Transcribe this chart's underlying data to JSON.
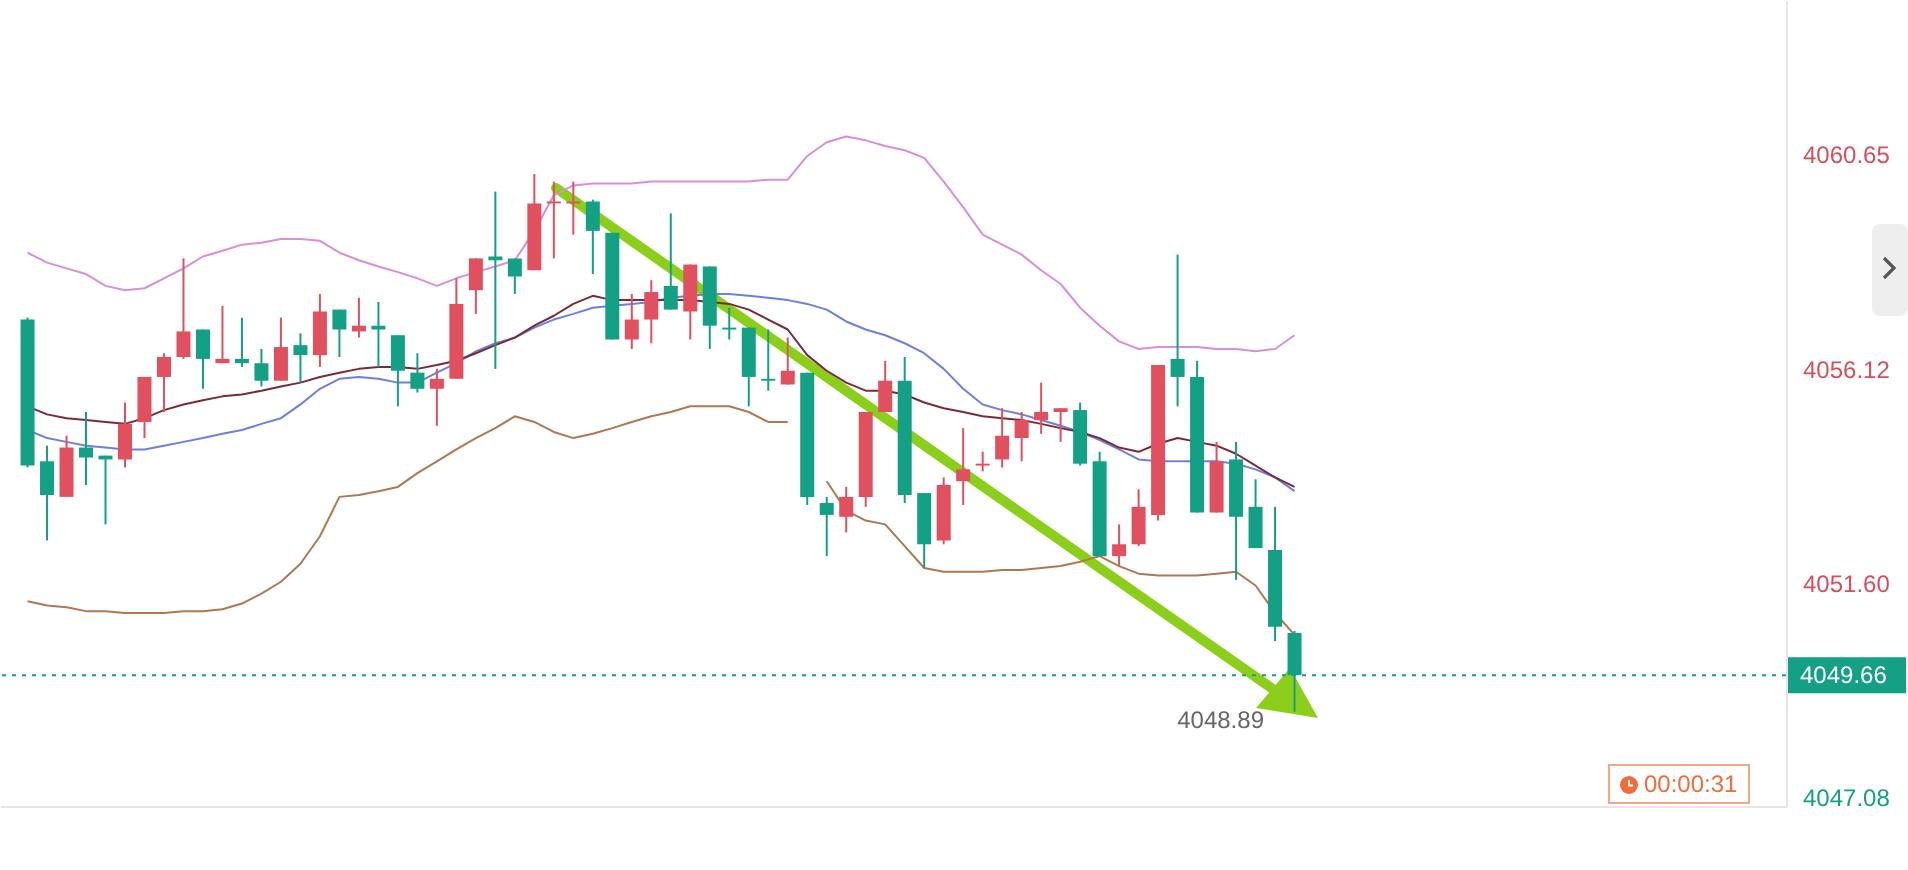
{
  "chart_data": {
    "type": "candlestick",
    "categories": [
      null,
      null,
      null,
      null,
      null,
      null,
      null,
      null,
      null,
      null,
      null,
      null,
      null,
      null,
      null,
      null,
      null,
      null,
      null,
      null,
      null,
      null,
      null,
      null,
      null,
      null,
      null,
      null,
      null,
      null,
      null,
      null,
      null,
      null,
      null,
      null,
      null,
      null,
      null,
      null,
      null,
      null,
      null,
      null,
      null,
      null,
      null,
      null,
      null,
      null,
      null,
      null,
      null,
      null,
      null,
      null,
      null,
      null,
      null,
      null,
      null,
      null,
      null,
      null,
      null,
      null
    ],
    "ohlc": [
      [
        4057.16,
        4057.2,
        4054.04,
        4054.08
      ],
      [
        4054.17,
        4054.5,
        4052.5,
        4053.46
      ],
      [
        4053.42,
        4054.71,
        4053.42,
        4054.46
      ],
      [
        4054.46,
        4055.21,
        4053.67,
        4054.25
      ],
      [
        4054.29,
        4054.29,
        4052.84,
        4054.21
      ],
      [
        4054.21,
        4055.41,
        4054.04,
        4054.96
      ],
      [
        4055.0,
        4055.95,
        4054.66,
        4055.95
      ],
      [
        4055.95,
        4056.45,
        4055.21,
        4056.37
      ],
      [
        4056.37,
        4058.45,
        4056.33,
        4056.91
      ],
      [
        4056.95,
        4056.95,
        4055.7,
        4056.33
      ],
      [
        4056.24,
        4057.45,
        4056.24,
        4056.33
      ],
      [
        4056.33,
        4057.2,
        4056.16,
        4056.24
      ],
      [
        4056.24,
        4056.54,
        4055.75,
        4055.87
      ],
      [
        4055.87,
        4057.2,
        4055.87,
        4056.58
      ],
      [
        4056.62,
        4056.87,
        4055.83,
        4056.41
      ],
      [
        4056.41,
        4057.7,
        4056.16,
        4057.33
      ],
      [
        4057.37,
        4057.37,
        4056.37,
        4056.95
      ],
      [
        4056.91,
        4057.62,
        4056.78,
        4057.03
      ],
      [
        4057.03,
        4057.53,
        4056.16,
        4056.95
      ],
      [
        4056.83,
        4056.83,
        4055.33,
        4056.08
      ],
      [
        4056.04,
        4056.45,
        4055.62,
        4055.7
      ],
      [
        4055.7,
        4056.12,
        4054.92,
        4055.91
      ],
      [
        4055.91,
        4058.03,
        4055.91,
        4057.49
      ],
      [
        4057.78,
        4058.45,
        4057.28,
        4058.45
      ],
      [
        4058.49,
        4059.86,
        4056.12,
        4058.41
      ],
      [
        4058.45,
        4058.45,
        4057.7,
        4058.07
      ],
      [
        4058.2,
        4060.23,
        4058.2,
        4059.61
      ],
      [
        4059.61,
        4060.07,
        4058.45,
        4059.65
      ],
      [
        4059.61,
        4060.07,
        4058.95,
        4059.65
      ],
      [
        4059.65,
        4059.69,
        4058.12,
        4059.03
      ],
      [
        4058.99,
        4058.99,
        4056.74,
        4056.74
      ],
      [
        4056.74,
        4057.7,
        4056.54,
        4057.16
      ],
      [
        4057.16,
        4057.99,
        4056.66,
        4057.74
      ],
      [
        4057.87,
        4059.4,
        4057.37,
        4057.37
      ],
      [
        4057.33,
        4058.32,
        4056.74,
        4058.32
      ],
      [
        4058.28,
        4058.28,
        4056.54,
        4057.03
      ],
      [
        4056.99,
        4057.41,
        4056.74,
        4056.95
      ],
      [
        4056.99,
        4056.99,
        4055.33,
        4055.95
      ],
      [
        4055.91,
        4056.95,
        4055.66,
        4055.87
      ],
      [
        4055.79,
        4056.78,
        4055.79,
        4056.08
      ],
      [
        4056.04,
        4056.04,
        4053.25,
        4053.42
      ],
      [
        4053.29,
        4053.42,
        4052.17,
        4053.04
      ],
      [
        4053.0,
        4053.63,
        4052.67,
        4053.42
      ],
      [
        4053.42,
        4055.21,
        4053.21,
        4055.21
      ],
      [
        4055.21,
        4056.29,
        4055.21,
        4055.87
      ],
      [
        4055.87,
        4056.37,
        4053.29,
        4053.46
      ],
      [
        4053.5,
        4053.5,
        4051.92,
        4052.42
      ],
      [
        4052.5,
        4053.83,
        4052.42,
        4053.67
      ],
      [
        4053.75,
        4054.87,
        4053.25,
        4054.0
      ],
      [
        4054.08,
        4054.37,
        4053.96,
        4054.12
      ],
      [
        4054.21,
        4055.29,
        4054.04,
        4054.71
      ],
      [
        4054.66,
        4055.21,
        4054.17,
        4055.04
      ],
      [
        4055.04,
        4055.83,
        4054.75,
        4055.21
      ],
      [
        4055.21,
        4055.29,
        4054.58,
        4055.29
      ],
      [
        4055.25,
        4055.41,
        4054.08,
        4054.12
      ],
      [
        4054.17,
        4054.37,
        4052.17,
        4052.17
      ],
      [
        4052.17,
        4052.84,
        4051.96,
        4052.42
      ],
      [
        4052.42,
        4053.58,
        4052.38,
        4053.21
      ],
      [
        4053.04,
        4056.2,
        4052.92,
        4056.2
      ],
      [
        4056.33,
        4058.53,
        4055.33,
        4055.95
      ],
      [
        4055.95,
        4056.29,
        4053.09,
        4053.09
      ],
      [
        4053.09,
        4054.58,
        4053.09,
        4054.17
      ],
      [
        4054.21,
        4054.58,
        4051.67,
        4053.0
      ],
      [
        4053.21,
        4053.79,
        4052.34,
        4052.34
      ],
      [
        4052.3,
        4053.21,
        4050.38,
        4050.68
      ],
      [
        4050.55,
        4050.59,
        4048.89,
        4049.66
      ]
    ],
    "colors": [
      "#14a085",
      "#14a085",
      "#e0505e",
      "#14a085",
      "#14a085",
      "#e0505e",
      "#e0505e",
      "#e0505e",
      "#e0505e",
      "#14a085",
      "#e0505e",
      "#14a085",
      "#14a085",
      "#e0505e",
      "#14a085",
      "#e0505e",
      "#14a085",
      "#e0505e",
      "#14a085",
      "#14a085",
      "#14a085",
      "#e0505e",
      "#e0505e",
      "#e0505e",
      "#14a085",
      "#14a085",
      "#e0505e",
      "#e0505e",
      "#e0505e",
      "#14a085",
      "#14a085",
      "#e0505e",
      "#e0505e",
      "#14a085",
      "#e0505e",
      "#14a085",
      "#14a085",
      "#14a085",
      "#14a085",
      "#e0505e",
      "#14a085",
      "#14a085",
      "#e0505e",
      "#e0505e",
      "#e0505e",
      "#14a085",
      "#14a085",
      "#e0505e",
      "#e0505e",
      "#e0505e",
      "#e0505e",
      "#e0505e",
      "#e0505e",
      "#e0505e",
      "#14a085",
      "#14a085",
      "#e0505e",
      "#e0505e",
      "#e0505e",
      "#14a085",
      "#14a085",
      "#e0505e",
      "#14a085",
      "#14a085",
      "#14a085",
      "#14a085"
    ],
    "series": [
      {
        "type": "line",
        "color": "#d98ed9",
        "values": [
          4058.57,
          4058.36,
          4058.24,
          4058.12,
          4057.87,
          4057.78,
          4057.82,
          4058.03,
          4058.24,
          4058.49,
          4058.61,
          4058.74,
          4058.78,
          4058.86,
          4058.86,
          4058.82,
          4058.57,
          4058.41,
          4058.28,
          4058.16,
          4058.03,
          4057.87,
          4058.03,
          4058.16,
          4058.28,
          4058.41,
          4059.03,
          4059.78,
          4059.99,
          4060.03,
          4060.03,
          4060.03,
          4060.07,
          4060.07,
          4060.07,
          4060.07,
          4060.07,
          4060.07,
          4060.11,
          4060.11,
          4060.61,
          4060.9,
          4061.02,
          4060.94,
          4060.82,
          4060.73,
          4060.57,
          4060.07,
          4059.53,
          4058.95,
          4058.74,
          4058.53,
          4058.2,
          4057.91,
          4057.41,
          4057.03,
          4056.7,
          4056.54,
          4056.58,
          4056.58,
          4056.58,
          4056.54,
          4056.54,
          4056.49,
          4056.54,
          4056.83
        ]
      },
      {
        "type": "line",
        "color": "#6f7fe0",
        "values": [
          4054.83,
          4054.66,
          4054.58,
          4054.5,
          4054.46,
          4054.42,
          4054.42,
          4054.5,
          4054.58,
          4054.66,
          4054.75,
          4054.83,
          4054.96,
          4055.08,
          4055.37,
          4055.7,
          4055.91,
          4055.95,
          4055.91,
          4055.83,
          4055.83,
          4056.04,
          4056.24,
          4056.49,
          4056.66,
          4056.78,
          4056.99,
          4057.16,
          4057.28,
          4057.41,
          4057.45,
          4057.49,
          4057.53,
          4057.62,
          4057.66,
          4057.7,
          4057.7,
          4057.66,
          4057.62,
          4057.57,
          4057.49,
          4057.37,
          4057.12,
          4056.95,
          4056.83,
          4056.66,
          4056.45,
          4056.12,
          4055.7,
          4055.37,
          4055.25,
          4055.16,
          4055.04,
          4054.92,
          4054.79,
          4054.62,
          4054.42,
          4054.21,
          4054.17,
          4054.17,
          4054.17,
          4054.17,
          4054.12,
          4054.0,
          4053.83,
          4053.54
        ]
      },
      {
        "type": "line",
        "color": "#7a2a3a",
        "values": [
          4055.33,
          4055.16,
          4055.08,
          4055.04,
          4055.0,
          4054.96,
          4055.08,
          4055.25,
          4055.37,
          4055.46,
          4055.54,
          4055.58,
          4055.66,
          4055.75,
          4055.83,
          4055.95,
          4056.04,
          4056.12,
          4056.16,
          4056.16,
          4056.12,
          4056.2,
          4056.29,
          4056.45,
          4056.62,
          4056.78,
          4057.03,
          4057.24,
          4057.49,
          4057.66,
          4057.57,
          4057.57,
          4057.57,
          4057.57,
          4057.57,
          4057.53,
          4057.49,
          4057.37,
          4057.16,
          4056.95,
          4056.41,
          4056.08,
          4055.83,
          4055.66,
          4055.66,
          4055.58,
          4055.41,
          4055.29,
          4055.21,
          4055.12,
          4055.08,
          4055.04,
          4054.96,
          4054.87,
          4054.79,
          4054.66,
          4054.46,
          4054.37,
          4054.54,
          4054.66,
          4054.58,
          4054.5,
          4054.33,
          4054.08,
          4053.83,
          4053.63
        ]
      },
      {
        "type": "line",
        "color": "#b07850",
        "values": [
          4051.22,
          4051.13,
          4051.09,
          4051.01,
          4051.01,
          4050.97,
          4050.97,
          4050.97,
          4051.01,
          4051.01,
          4051.05,
          4051.17,
          4051.38,
          4051.63,
          4052.01,
          4052.59,
          4053.42,
          4053.46,
          4053.54,
          4053.63,
          4053.92,
          4054.17,
          4054.42,
          4054.66,
          4054.87,
          4055.12,
          4055.0,
          4054.79,
          4054.66,
          4054.75,
          4054.87,
          4055.0,
          4055.12,
          4055.21,
          4055.33,
          4055.33,
          4055.33,
          4055.21,
          4055.0,
          4055.0,
          null,
          4053.75,
          4053.13,
          4052.92,
          4052.84,
          4052.38,
          4051.92,
          4051.84,
          4051.84,
          4051.84,
          4051.88,
          4051.88,
          4051.92,
          4051.96,
          4052.05,
          4052.17,
          4051.96,
          4051.8,
          4051.76,
          4051.76,
          4051.76,
          4051.8,
          4051.84,
          4051.55,
          4050.97,
          4050.51
        ]
      }
    ],
    "ylim": [
      4046.9,
      4063.9
    ],
    "yticks": [
      4060.65,
      4056.12,
      {
        "value": 4051.6,
        "label": "4051.60"
      },
      4047.08
    ],
    "tick_labels": "y",
    "ref_lines": [
      {
        "axis": "y",
        "value": 4049.66,
        "label": "4049.66",
        "color": "#14a085",
        "line_style": "dotted"
      }
    ],
    "annotations": [
      "4048.89",
      "00:00:31"
    ]
  }
}
